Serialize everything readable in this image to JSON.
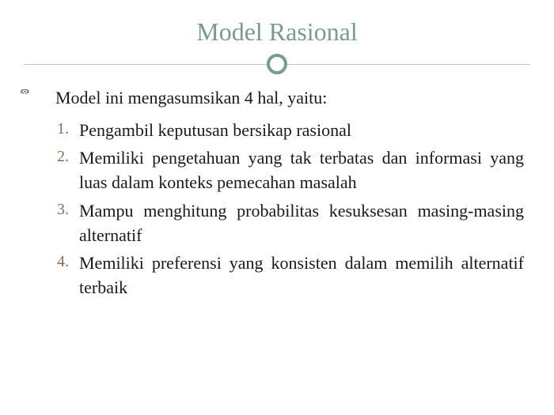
{
  "title": "Model Rasional",
  "intro": "Model ini mengasumsikan 4 hal, yaitu:",
  "items": [
    "Pengambil keputusan bersikap rasional",
    "Memiliki pengetahuan yang tak terbatas dan informasi yang luas dalam konteks pemecahan masalah",
    "Mampu menghitung probabilitas kesuksesan masing-masing alternatif",
    "Memiliki preferensi yang konsisten dalam memilih alternatif terbaik"
  ],
  "colors": {
    "title": "#7a9b8e",
    "divider_line": "#b8c9c2",
    "circle_border": "#7a9b8e",
    "number": "#8a6b4a",
    "body_text": "#1a1a1a",
    "background": "#ffffff"
  },
  "typography": {
    "title_fontsize": 32,
    "body_fontsize": 22,
    "number_fontsize": 20,
    "font_family": "Georgia, serif"
  }
}
